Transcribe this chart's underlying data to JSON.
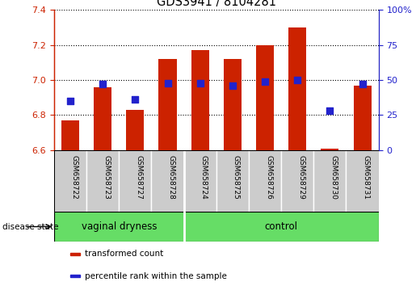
{
  "title": "GDS3941 / 8104281",
  "samples": [
    "GSM658722",
    "GSM658723",
    "GSM658727",
    "GSM658728",
    "GSM658724",
    "GSM658725",
    "GSM658726",
    "GSM658729",
    "GSM658730",
    "GSM658731"
  ],
  "transformed_count": [
    6.77,
    6.96,
    6.83,
    7.12,
    7.17,
    7.12,
    7.2,
    7.3,
    6.61,
    6.97
  ],
  "percentile_rank": [
    35,
    47,
    36,
    48,
    48,
    46,
    49,
    50,
    28,
    47
  ],
  "groups": [
    {
      "label": "vaginal dryness",
      "start": 0,
      "end": 4
    },
    {
      "label": "control",
      "start": 4,
      "end": 10
    }
  ],
  "group_color": "#66dd66",
  "group_boundary": 4,
  "ylim": [
    6.6,
    7.4
  ],
  "yticks": [
    6.6,
    6.8,
    7.0,
    7.2,
    7.4
  ],
  "right_yticks": [
    0,
    25,
    50,
    75,
    100
  ],
  "bar_color": "#cc2200",
  "dot_color": "#2222cc",
  "bar_bottom": 6.6,
  "bar_width": 0.55,
  "dot_size": 28,
  "legend_items": [
    {
      "label": "transformed count",
      "color": "#cc2200"
    },
    {
      "label": "percentile rank within the sample",
      "color": "#2222cc"
    }
  ],
  "xlabel_disease": "disease state",
  "tick_color_left": "#cc2200",
  "tick_color_right": "#2222cc",
  "sample_box_color": "#cccccc",
  "fig_width": 5.15,
  "fig_height": 3.54,
  "dpi": 100
}
